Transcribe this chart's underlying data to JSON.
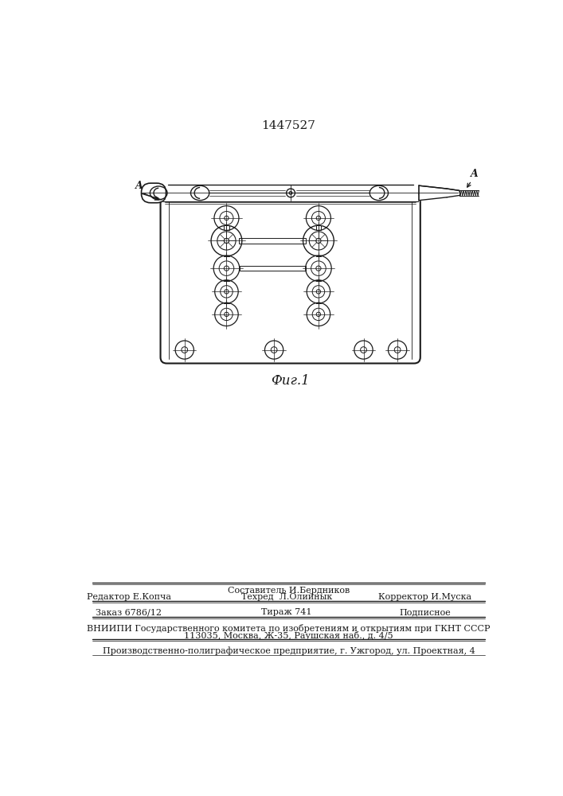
{
  "patent_number": "1447527",
  "fig_label": "Фиг.1",
  "background_color": "#ffffff",
  "line_color": "#1a1a1a",
  "footer": {
    "col1_line2": "Редактор Е.Копча",
    "col2_line1": "Составитель И.Бердников",
    "col2_line2": "Техред  Л.Олийнык",
    "col3_line2": "Корректор И.Муска",
    "row2_col1": "Заказ 6786/12",
    "row2_col2": "Тираж 741",
    "row2_col3": "Подписное",
    "vnipi_line1": "ВНИИПИ Государственного комитета по изобретениям и открытиям при ГКНТ СССР",
    "vnipi_line2": "113035, Москва, Ж-35, Раушская наб., д. 4/5",
    "production": "Производственно-полиграфическое предприятие, г. Ужгород, ул. Проектная, 4"
  }
}
